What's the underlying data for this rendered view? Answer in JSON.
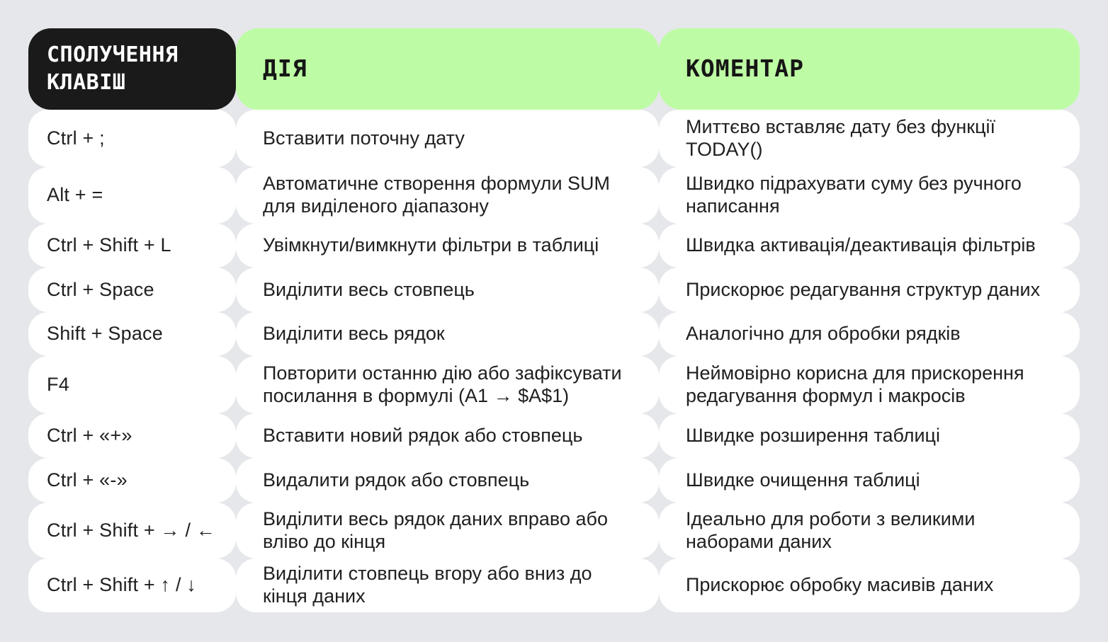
{
  "title": "Excel keyboard shortcuts cheat sheet (Ukrainian)",
  "colors": {
    "page_background": "#e5e7ea",
    "cell_background": "#ffffff",
    "header_keys_background": "#1a1a1a",
    "header_keys_text": "#ffffff",
    "header_green_background": "#bdfca4",
    "body_text": "#202020"
  },
  "header": {
    "keys": "СПОЛУЧЕННЯ КЛАВІШ",
    "action": "ДІЯ",
    "comment": "КОМЕНТАР"
  },
  "rows": [
    {
      "keys": "Ctrl + ;",
      "action": "Вставити поточну дату",
      "comment": "Миттєво вставляє дату без функції TODAY()"
    },
    {
      "keys": "Alt + =",
      "action": "Автоматичне створення формули SUM для виділеного діапазону",
      "comment": "Швидко підрахувати суму без ручного написання"
    },
    {
      "keys": "Ctrl + Shift + L",
      "action": "Увімкнути/вимкнути фільтри в таблиці",
      "comment": "Швидка активація/деактивація фільтрів"
    },
    {
      "keys": "Ctrl + Space",
      "action": "Виділити весь стовпець",
      "comment": "Прискорює редагування структур даних"
    },
    {
      "keys": "Shift + Space",
      "action": "Виділити весь рядок",
      "comment": "Аналогічно для обробки рядків"
    },
    {
      "keys": "F4",
      "action": "Повторити останню дію або зафіксувати посилання в формулі (A1 → $A$1)",
      "comment": "Неймовірно корисна для прискорення редагування формул і макросів"
    },
    {
      "keys": "Ctrl + «+»",
      "action": "Вставити новий рядок або стовпець",
      "comment": "Швидке розширення таблиці"
    },
    {
      "keys": "Ctrl + «-»",
      "action": "Видалити рядок або стовпець",
      "comment": "Швидке очищення таблиці"
    },
    {
      "keys": "Ctrl + Shift + → / ←",
      "action": "Виділити весь рядок даних вправо або вліво до кінця",
      "comment": "Ідеально для роботи з великими наборами даних"
    },
    {
      "keys": "Ctrl + Shift + ↑ / ↓",
      "action": "Виділити стовпець вгору або вниз до кінця даних",
      "comment": "Прискорює обробку масивів даних"
    }
  ]
}
